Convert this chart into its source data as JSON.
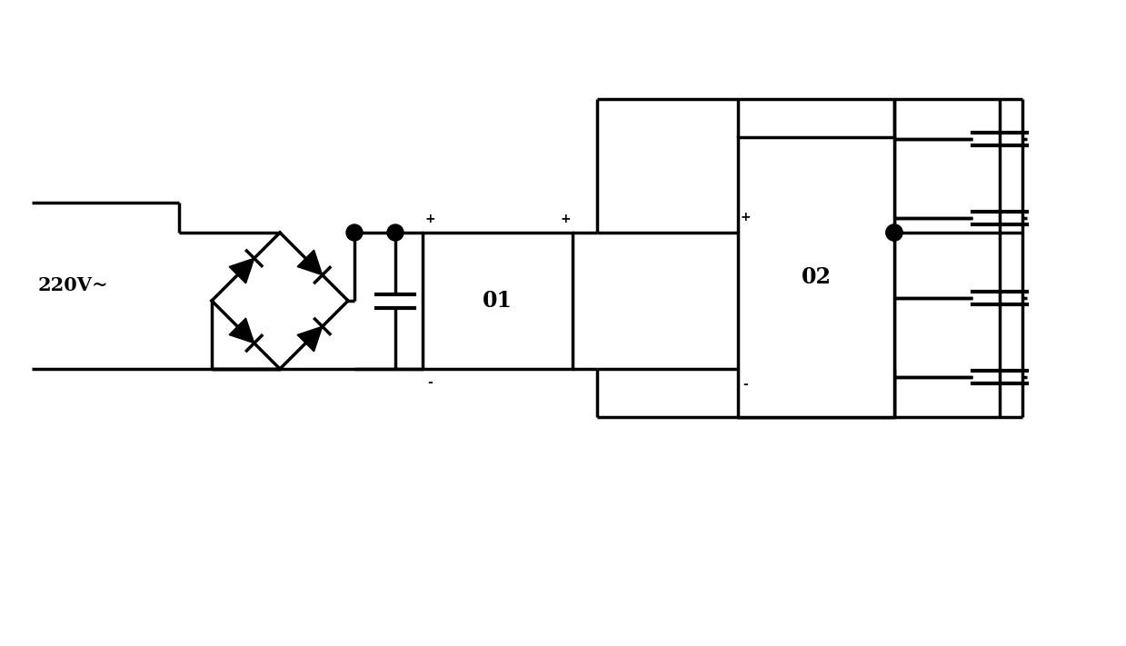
{
  "bg_color": "#ffffff",
  "line_color": "#000000",
  "lw": 2.5,
  "fig_width": 12.39,
  "fig_height": 7.11,
  "label_220": "220V~",
  "label_01": "01",
  "label_02": "02"
}
